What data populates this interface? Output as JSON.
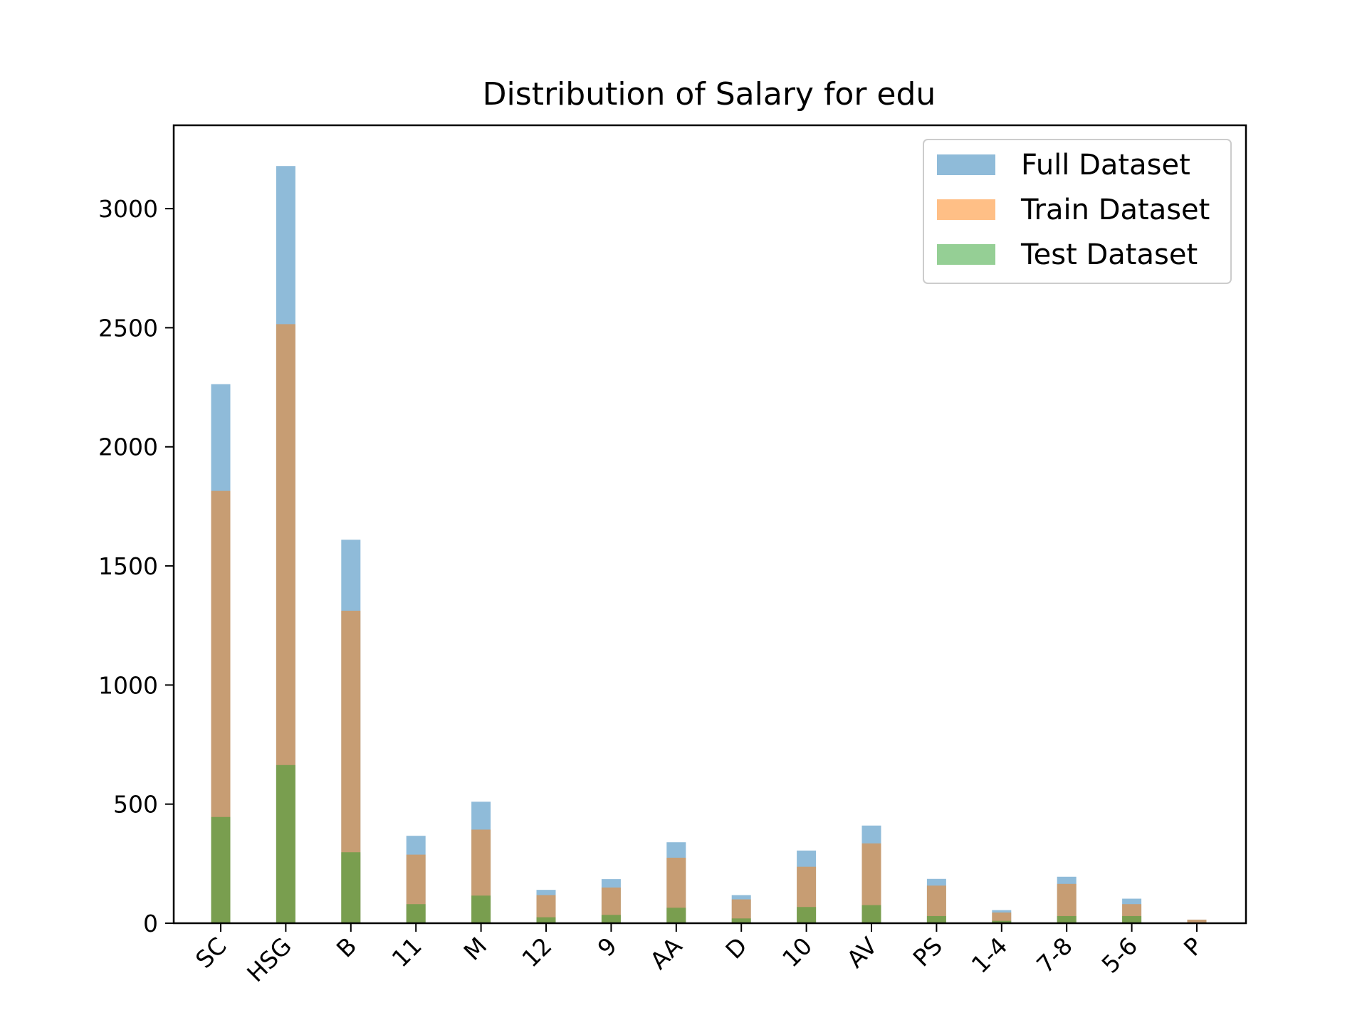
{
  "chart_data": {
    "type": "bar",
    "title": "Distribution of Salary for edu",
    "xlabel": "",
    "ylabel": "",
    "categories": [
      "SC",
      "HSG",
      "B",
      "11",
      "M",
      "12",
      "9",
      "AA",
      "D",
      "10",
      "AV",
      "PS",
      "1-4",
      "7-8",
      "5-6",
      "P"
    ],
    "series": [
      {
        "name": "Full Dataset",
        "color": "#1f77b4",
        "opacity": 0.5,
        "values": [
          2263,
          3179,
          1610,
          367,
          510,
          140,
          185,
          340,
          118,
          305,
          410,
          186,
          55,
          195,
          103,
          15
        ]
      },
      {
        "name": "Train Dataset",
        "color": "#ff7f0e",
        "opacity": 0.5,
        "values": [
          1815,
          2515,
          1312,
          288,
          393,
          118,
          150,
          275,
          100,
          237,
          335,
          158,
          45,
          165,
          80,
          15
        ]
      },
      {
        "name": "Test Dataset",
        "color": "#2ca02c",
        "opacity": 0.5,
        "values": [
          446,
          664,
          298,
          80,
          116,
          25,
          35,
          65,
          20,
          68,
          76,
          30,
          10,
          30,
          30,
          0
        ]
      }
    ],
    "ylim": [
      0,
      3350
    ],
    "yticks": [
      0,
      500,
      1000,
      1500,
      2000,
      2500,
      3000
    ],
    "xtick_rotation": 45,
    "grid": false,
    "legend_position": "top-right"
  }
}
